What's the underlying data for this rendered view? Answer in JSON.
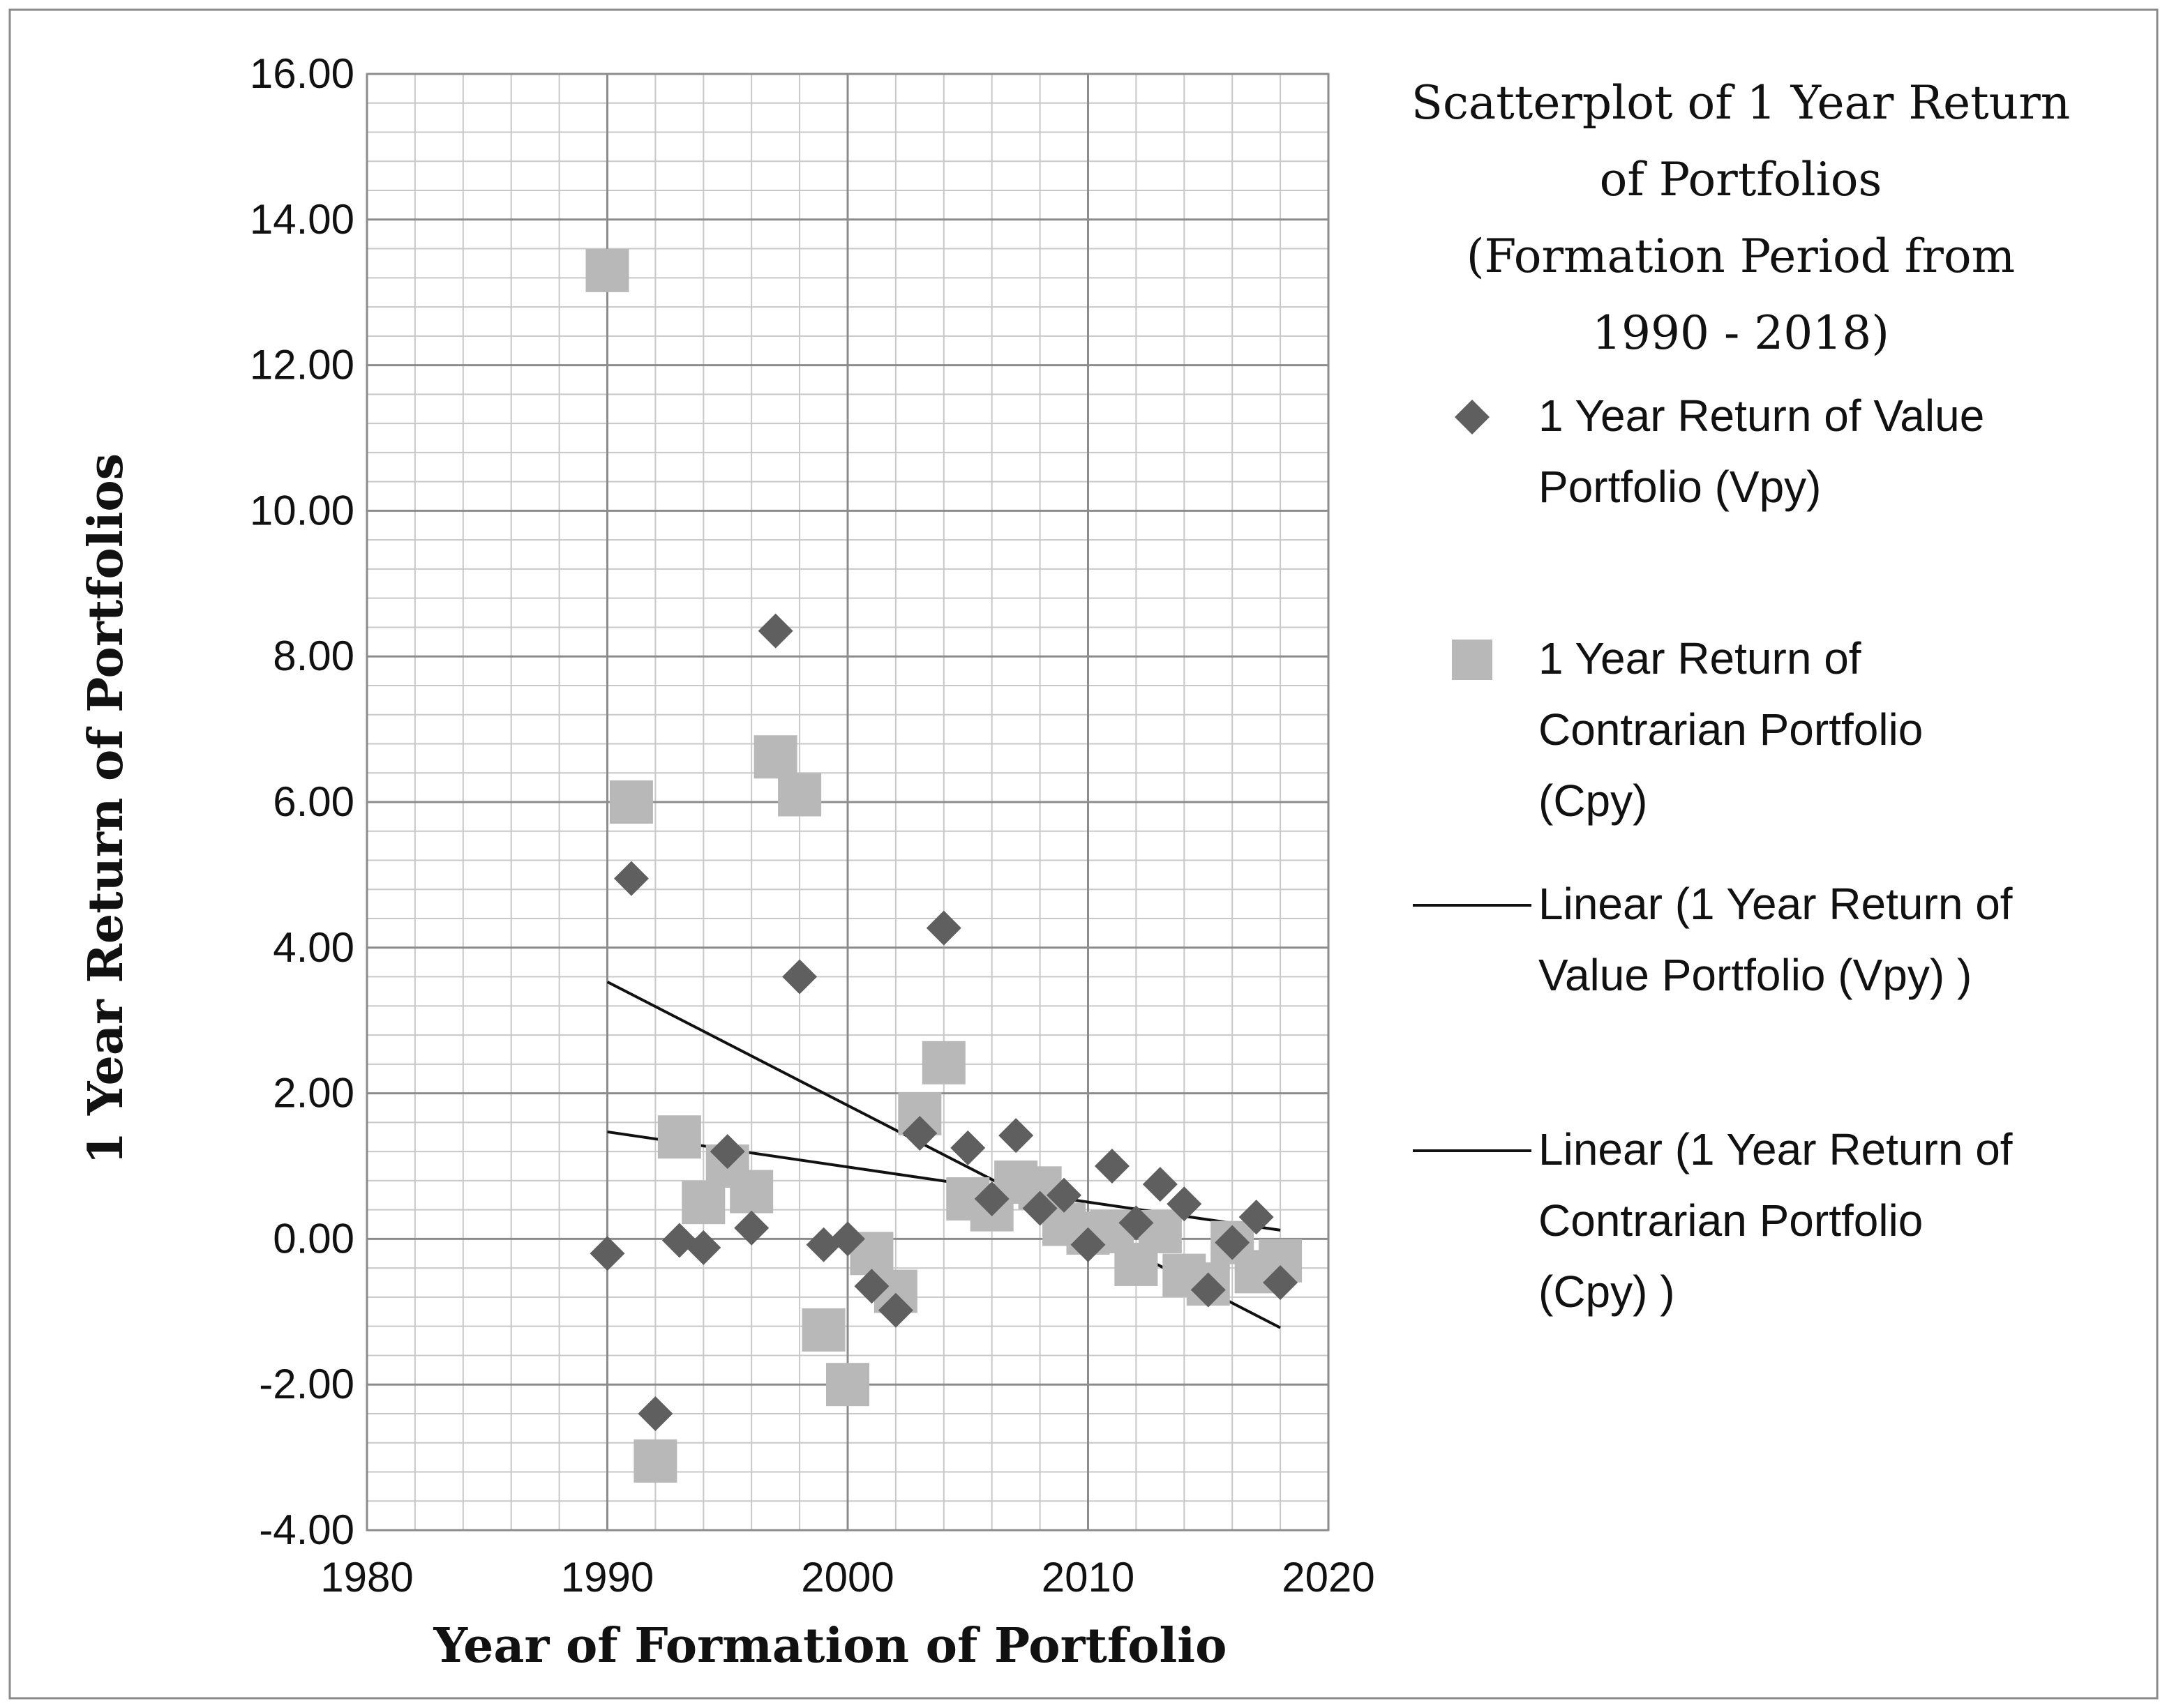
{
  "chart_data": {
    "type": "scatter",
    "title_lines": [
      "Scatterplot of 1 Year Return",
      "of Portfolios",
      "(Formation Period from",
      "1990 - 2018)"
    ],
    "xlabel": "Year of Formation of Portfolio",
    "ylabel": "1 Year Return of Portfolios",
    "xlim": [
      1980,
      2020
    ],
    "ylim": [
      -4,
      16
    ],
    "x_ticks": [
      1980,
      1990,
      2000,
      2010,
      2020
    ],
    "x_tick_labels": [
      "1980",
      "1990",
      "2000",
      "2010",
      "2020"
    ],
    "y_ticks": [
      -4,
      -2,
      0,
      2,
      4,
      6,
      8,
      10,
      12,
      14,
      16
    ],
    "y_tick_labels": [
      "-4.00",
      "-2.00",
      "0.00",
      "2.00",
      "4.00",
      "6.00",
      "8.00",
      "10.00",
      "12.00",
      "14.00",
      "16.00"
    ],
    "grid": true,
    "legend_position": "right",
    "series": [
      {
        "name": "1 Year Return of Value Portfolio (Vpy)",
        "legend_lines": [
          "1 Year Return of Value",
          "Portfolio (Vpy)"
        ],
        "marker": "diamond",
        "color": "#5f5f5f",
        "x": [
          1990,
          1991,
          1992,
          1993,
          1994,
          1995,
          1996,
          1997,
          1998,
          1999,
          2000,
          2001,
          2002,
          2003,
          2004,
          2005,
          2006,
          2007,
          2008,
          2009,
          2010,
          2011,
          2012,
          2013,
          2014,
          2015,
          2016,
          2017,
          2018
        ],
        "y": [
          -0.2,
          4.95,
          -2.4,
          -0.02,
          -0.12,
          1.2,
          0.15,
          8.35,
          3.6,
          -0.08,
          0.0,
          -0.65,
          -0.98,
          1.45,
          4.27,
          1.25,
          0.55,
          1.42,
          0.42,
          0.6,
          -0.08,
          1.0,
          0.22,
          0.75,
          0.48,
          -0.7,
          -0.05,
          0.3,
          -0.6
        ]
      },
      {
        "name": "1 Year Return of Contrarian Portfolio (Cpy)",
        "legend_lines": [
          "1 Year Return of",
          "Contrarian Portfolio",
          "(Cpy)"
        ],
        "marker": "square",
        "color": "#b8b8b8",
        "x": [
          1990,
          1991,
          1992,
          1993,
          1994,
          1995,
          1996,
          1997,
          1998,
          1999,
          2000,
          2001,
          2002,
          2003,
          2004,
          2005,
          2006,
          2007,
          2008,
          2009,
          2010,
          2011,
          2012,
          2013,
          2014,
          2015,
          2016,
          2017,
          2018
        ],
        "y": [
          13.3,
          6.0,
          -3.05,
          1.4,
          0.5,
          1.0,
          0.65,
          6.62,
          6.1,
          -1.25,
          -2.0,
          -0.2,
          -0.72,
          1.72,
          2.42,
          0.55,
          0.4,
          0.78,
          0.7,
          0.2,
          0.08,
          0.1,
          -0.35,
          0.1,
          -0.5,
          -0.62,
          -0.05,
          -0.45,
          -0.3
        ]
      }
    ],
    "trendlines": [
      {
        "name": "Linear (1 Year Return of Value Portfolio (Vpy) )",
        "legend_lines": [
          "Linear (1 Year Return of",
          "Value Portfolio (Vpy) )"
        ],
        "type": "linear",
        "x": [
          1990,
          2018
        ],
        "y": [
          3.53,
          -1.22
        ]
      },
      {
        "name": "Linear (1 Year Return of Contrarian Portfolio (Cpy) )",
        "legend_lines": [
          "Linear (1 Year Return of",
          "Contrarian Portfolio",
          "(Cpy) )"
        ],
        "type": "linear",
        "x": [
          1990,
          2018
        ],
        "y": [
          1.47,
          0.12
        ]
      }
    ]
  }
}
